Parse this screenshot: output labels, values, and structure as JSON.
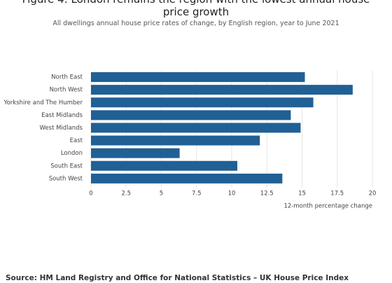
{
  "chart_data": {
    "type": "hbar",
    "title": "Figure 4: London remains the region with the lowest annual house price growth",
    "subtitle": "All dwellings annual house price rates of change, by English region, year to June 2021",
    "categories": [
      "North East",
      "North West",
      "Yorkshire and The Humber",
      "East Midlands",
      "West Midlands",
      "East",
      "London",
      "South East",
      "South West"
    ],
    "values": [
      15.2,
      18.6,
      15.8,
      14.2,
      14.9,
      12.0,
      6.3,
      10.4,
      13.6
    ],
    "color": "#206095",
    "xlim": [
      0,
      20
    ],
    "xticks": [
      0,
      2.5,
      5,
      7.5,
      10,
      12.5,
      15,
      17.5,
      20
    ],
    "xlabel": "12-month percentage change",
    "grid": true,
    "source": "Source: HM Land Registry and Office for National Statistics – UK House Price Index"
  }
}
